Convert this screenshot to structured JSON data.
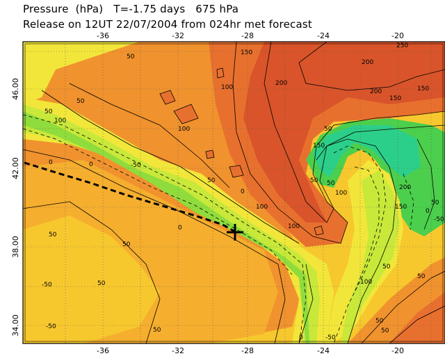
{
  "header": {
    "line1": "Pressure  (hPa)   T=-1.75 days   675 hPa",
    "line2": "Release on 12UT 22/07/2004 from 024hr met forecast"
  },
  "map": {
    "x_ticks": [
      "-36",
      "-32",
      "-28",
      "-24",
      "-20"
    ],
    "y_ticks": [
      "46.00",
      "42.00",
      "38.00",
      "34.00"
    ],
    "contour_labels": [
      "-50",
      "-50",
      "0",
      "0",
      "50",
      "50",
      "50",
      "50",
      "0",
      "-50",
      "50",
      "100",
      "50",
      "100",
      "50",
      "100",
      "50",
      "0",
      "100",
      "100",
      "150",
      "200",
      "200",
      "250",
      "200",
      "150",
      "150",
      "50",
      "50",
      "150",
      "100",
      "50",
      "200",
      "150",
      "100",
      "50",
      "0",
      "-50",
      "50",
      "50",
      "50",
      "0",
      "-50",
      "50"
    ],
    "colors": {
      "deep_orange": "#d9542a",
      "orange_red": "#e8702e",
      "orange": "#f0922e",
      "light_orange": "#f5ae2e",
      "yellow_orange": "#f7c82e",
      "yellow": "#f2e63a",
      "yellow_green": "#c8e83a",
      "light_green": "#8fdc3c",
      "green": "#4ccf4c",
      "teal": "#2ccf8a",
      "frame_border": "#000000"
    }
  }
}
